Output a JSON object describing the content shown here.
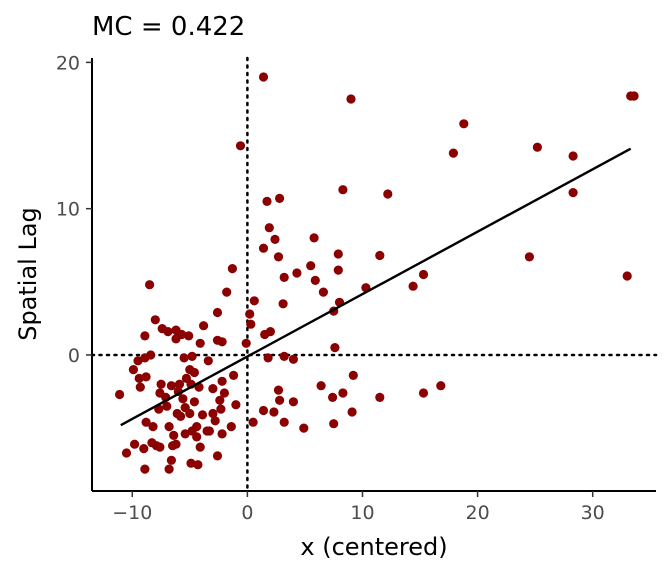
{
  "chart_data": {
    "type": "scatter",
    "title": "MC = 0.422",
    "xlabel": "x (centered)",
    "ylabel": "Spatial Lag",
    "xlim": [
      -13.5,
      35.5
    ],
    "ylim": [
      -9.3,
      20.3
    ],
    "xticks": [
      -10,
      0,
      10,
      20,
      30
    ],
    "yticks": [
      0,
      10,
      20
    ],
    "xtick_labels": [
      "−10",
      "0",
      "10",
      "20",
      "30"
    ],
    "ytick_labels": [
      "0",
      "10",
      "20"
    ],
    "grid": false,
    "point_color": "#8b0000",
    "line_color": "#000000",
    "reference_lines": {
      "x": 0,
      "y": 0,
      "style": "dotted"
    },
    "regression_line": {
      "x": [
        -11,
        33.3
      ],
      "y": [
        -4.8,
        14.1
      ]
    },
    "points": [
      [
        1.4,
        19.0
      ],
      [
        9.0,
        17.5
      ],
      [
        33.3,
        17.7
      ],
      [
        33.6,
        17.7
      ],
      [
        18.8,
        15.8
      ],
      [
        25.2,
        14.2
      ],
      [
        17.9,
        13.8
      ],
      [
        28.3,
        13.6
      ],
      [
        -0.6,
        14.3
      ],
      [
        8.3,
        11.3
      ],
      [
        12.2,
        11.0
      ],
      [
        28.3,
        11.1
      ],
      [
        1.7,
        10.5
      ],
      [
        2.8,
        10.7
      ],
      [
        1.9,
        8.7
      ],
      [
        2.4,
        7.9
      ],
      [
        1.4,
        7.3
      ],
      [
        5.8,
        8.0
      ],
      [
        2.7,
        6.7
      ],
      [
        7.9,
        6.9
      ],
      [
        11.5,
        6.8
      ],
      [
        24.5,
        6.7
      ],
      [
        5.5,
        6.1
      ],
      [
        4.3,
        5.6
      ],
      [
        3.2,
        5.3
      ],
      [
        5.9,
        5.1
      ],
      [
        7.9,
        5.8
      ],
      [
        -1.3,
        5.9
      ],
      [
        15.3,
        5.5
      ],
      [
        14.4,
        4.7
      ],
      [
        33.0,
        5.4
      ],
      [
        -8.5,
        4.8
      ],
      [
        6.6,
        4.3
      ],
      [
        10.3,
        4.6
      ],
      [
        -1.8,
        4.3
      ],
      [
        0.6,
        3.7
      ],
      [
        3.1,
        3.5
      ],
      [
        8.0,
        3.6
      ],
      [
        7.5,
        3.0
      ],
      [
        0.2,
        2.8
      ],
      [
        -2.6,
        2.9
      ],
      [
        -8.0,
        2.4
      ],
      [
        -3.8,
        2.0
      ],
      [
        0.3,
        2.1
      ],
      [
        1.5,
        1.4
      ],
      [
        2.0,
        1.6
      ],
      [
        -7.4,
        1.8
      ],
      [
        -6.9,
        1.6
      ],
      [
        -6.2,
        1.7
      ],
      [
        -5.7,
        1.4
      ],
      [
        -5.1,
        1.3
      ],
      [
        -6.2,
        1.1
      ],
      [
        -8.9,
        1.3
      ],
      [
        -2.6,
        1.0
      ],
      [
        -2.2,
        0.9
      ],
      [
        -4.1,
        0.8
      ],
      [
        -0.1,
        0.8
      ],
      [
        7.6,
        0.5
      ],
      [
        -8.4,
        0.0
      ],
      [
        -8.9,
        -0.2
      ],
      [
        -4.8,
        -0.1
      ],
      [
        -9.5,
        -0.4
      ],
      [
        -5.5,
        -0.2
      ],
      [
        -3.4,
        -0.4
      ],
      [
        1.8,
        -0.2
      ],
      [
        3.2,
        -0.1
      ],
      [
        4.0,
        -0.3
      ],
      [
        -9.9,
        -1.0
      ],
      [
        -9.4,
        -1.6
      ],
      [
        -5.0,
        -1.0
      ],
      [
        -4.6,
        -1.2
      ],
      [
        -2.2,
        -1.8
      ],
      [
        -1.2,
        -1.4
      ],
      [
        -8.8,
        -1.5
      ],
      [
        -7.5,
        -2.0
      ],
      [
        -6.6,
        -2.1
      ],
      [
        -5.9,
        -2.0
      ],
      [
        -5.3,
        -1.6
      ],
      [
        -4.9,
        -2.0
      ],
      [
        -9.3,
        -2.2
      ],
      [
        -11.1,
        -2.7
      ],
      [
        -7.6,
        -2.6
      ],
      [
        -7.1,
        -2.9
      ],
      [
        -6.0,
        -2.5
      ],
      [
        -5.6,
        -3.0
      ],
      [
        -4.2,
        -2.2
      ],
      [
        -3.0,
        -2.3
      ],
      [
        -2.0,
        -2.6
      ],
      [
        -5.4,
        -3.6
      ],
      [
        -4.6,
        -3.2
      ],
      [
        -2.4,
        -3.1
      ],
      [
        -1.0,
        -3.4
      ],
      [
        2.7,
        -2.4
      ],
      [
        6.4,
        -2.1
      ],
      [
        7.4,
        -2.9
      ],
      [
        8.3,
        -2.6
      ],
      [
        9.2,
        -1.4
      ],
      [
        11.5,
        -2.9
      ],
      [
        15.3,
        -2.6
      ],
      [
        16.8,
        -2.1
      ],
      [
        2.8,
        -3.1
      ],
      [
        4.0,
        -3.2
      ],
      [
        -7.0,
        -3.5
      ],
      [
        -7.7,
        -3.7
      ],
      [
        -6.1,
        -4.0
      ],
      [
        -5.8,
        -4.2
      ],
      [
        -5.0,
        -4.0
      ],
      [
        -3.9,
        -4.1
      ],
      [
        -3.0,
        -4.0
      ],
      [
        -2.3,
        -3.7
      ],
      [
        -8.8,
        -4.6
      ],
      [
        -8.2,
        -4.9
      ],
      [
        -6.8,
        -4.9
      ],
      [
        -4.4,
        -4.9
      ],
      [
        -3.5,
        -5.2
      ],
      [
        -1.4,
        -4.9
      ],
      [
        0.5,
        -4.6
      ],
      [
        1.4,
        -3.8
      ],
      [
        2.3,
        -3.9
      ],
      [
        3.2,
        -4.6
      ],
      [
        4.9,
        -5.0
      ],
      [
        7.5,
        -4.7
      ],
      [
        9.1,
        -3.9
      ],
      [
        -9.8,
        -6.1
      ],
      [
        -9.0,
        -6.4
      ],
      [
        -8.3,
        -6.0
      ],
      [
        -7.6,
        -6.3
      ],
      [
        -6.4,
        -5.5
      ],
      [
        -5.4,
        -5.4
      ],
      [
        -4.8,
        -5.2
      ],
      [
        -4.4,
        -5.6
      ],
      [
        -2.2,
        -5.4
      ],
      [
        -4.1,
        -6.3
      ],
      [
        -6.5,
        -6.2
      ],
      [
        -10.5,
        -6.7
      ],
      [
        -6.6,
        -7.2
      ],
      [
        -8.9,
        -7.8
      ],
      [
        -6.8,
        -7.8
      ],
      [
        -4.9,
        -7.4
      ],
      [
        -4.3,
        -7.5
      ],
      [
        -2.6,
        -6.9
      ],
      [
        -7.9,
        -6.2
      ],
      [
        -6.2,
        -6.1
      ],
      [
        -3.3,
        -5.2
      ],
      [
        -2.8,
        -4.5
      ]
    ]
  }
}
